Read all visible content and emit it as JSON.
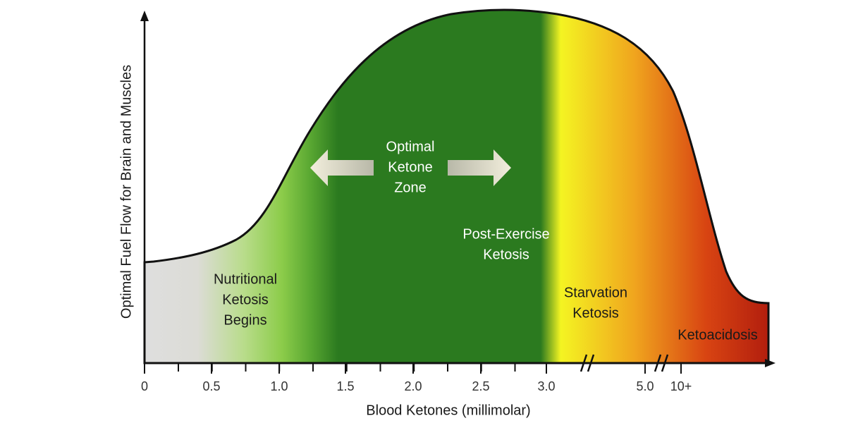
{
  "y_axis_label": "Optimal Fuel Flow for Brain and Muscles",
  "x_axis_label": "Blood Ketones (millimolar)",
  "x_ticks": [
    "0",
    "0.5",
    "1.0",
    "1.5",
    "2.0",
    "2.5",
    "3.0",
    "5.0",
    "10+"
  ],
  "zones": {
    "optimal": [
      "Optimal",
      "Ketone",
      "Zone"
    ],
    "post_exercise": [
      "Post-Exercise",
      "Ketosis"
    ],
    "nutritional": [
      "Nutritional",
      "Ketosis",
      "Begins"
    ],
    "starvation": [
      "Starvation",
      "Ketosis"
    ],
    "ketoacidosis": [
      "Ketoacidosis"
    ]
  }
}
